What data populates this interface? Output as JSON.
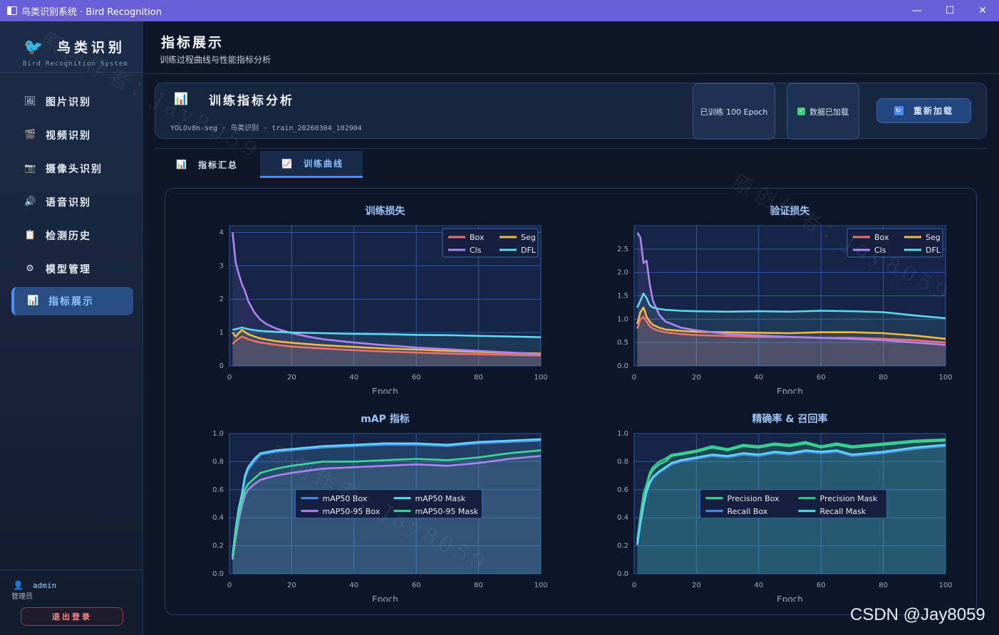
{
  "window": {
    "title": "鸟类识别系统 · Bird Recognition",
    "minimize": "—",
    "maximize": "☐",
    "close": "✕"
  },
  "sidebar": {
    "logo_title": "鸟类识别",
    "logo_sub": "Bird Recognition System",
    "items": [
      {
        "label": "图片识别",
        "icon": "image-icon",
        "glyph": "🖼"
      },
      {
        "label": "视频识别",
        "icon": "clapper-icon",
        "glyph": "🎬"
      },
      {
        "label": "摄像头识别",
        "icon": "camera-icon",
        "glyph": "📷"
      },
      {
        "label": "语音识别",
        "icon": "speaker-icon",
        "glyph": "🔊"
      },
      {
        "label": "检测历史",
        "icon": "clipboard-icon",
        "glyph": "📋"
      },
      {
        "label": "模型管理",
        "icon": "gear-icon",
        "glyph": "⚙"
      },
      {
        "label": "指标展示",
        "icon": "bar-chart-icon",
        "glyph": "📊"
      }
    ],
    "active_index": 6,
    "user": {
      "name": "admin",
      "role": "管理员"
    },
    "logout": "退出登录"
  },
  "header": {
    "title": "指标展示",
    "subtitle": "训练过程曲线与性能指标分析"
  },
  "card": {
    "title": "训练指标分析",
    "meta": "YOLOv8n-seg  ·  鸟类识别  ·  train_20260304_102904",
    "badge_epochs": "已训练 100 Epoch",
    "badge_loaded": "数据已加载",
    "reload": "重新加载"
  },
  "tabs": [
    {
      "label": "指标汇总"
    },
    {
      "label": "训练曲线"
    }
  ],
  "watermark": "原创作者：Jay8059",
  "footer_watermark": "CSDN @Jay8059",
  "colors": {
    "box": "#ef6f6c",
    "seg": "#f4b942",
    "cls": "#b083f5",
    "dfl": "#5fd8ee",
    "accent": "#4a8cf7"
  },
  "chart_data": [
    {
      "type": "line",
      "title": "训练损失",
      "xlabel": "Epoch",
      "ylabel": "",
      "xlim": [
        0,
        100
      ],
      "ylim": [
        0,
        4.2
      ],
      "xticks": [
        0,
        20,
        40,
        60,
        80,
        100
      ],
      "yticks": [
        0,
        1,
        2,
        3,
        4
      ],
      "grid": true,
      "legend": "top-right",
      "series": [
        {
          "name": "Box",
          "color": "#ef6f6c",
          "x": [
            1,
            2,
            4,
            6,
            8,
            10,
            15,
            20,
            30,
            40,
            50,
            60,
            70,
            80,
            90,
            100
          ],
          "y": [
            0.65,
            0.75,
            0.88,
            0.8,
            0.74,
            0.7,
            0.63,
            0.58,
            0.52,
            0.47,
            0.43,
            0.4,
            0.37,
            0.35,
            0.33,
            0.31
          ]
        },
        {
          "name": "Seg",
          "color": "#f4b942",
          "x": [
            1,
            2,
            4,
            6,
            8,
            10,
            15,
            20,
            30,
            40,
            50,
            60,
            70,
            80,
            90,
            100
          ],
          "y": [
            1.0,
            0.88,
            1.08,
            0.95,
            0.88,
            0.82,
            0.74,
            0.69,
            0.62,
            0.57,
            0.52,
            0.49,
            0.45,
            0.42,
            0.39,
            0.37
          ]
        },
        {
          "name": "Cls",
          "color": "#b083f5",
          "x": [
            1,
            2,
            3,
            4,
            5,
            6,
            8,
            10,
            12,
            15,
            20,
            25,
            30,
            40,
            50,
            60,
            70,
            80,
            90,
            100
          ],
          "y": [
            4.0,
            3.1,
            2.75,
            2.45,
            2.25,
            1.95,
            1.6,
            1.38,
            1.25,
            1.12,
            0.98,
            0.88,
            0.8,
            0.7,
            0.62,
            0.55,
            0.5,
            0.45,
            0.4,
            0.35
          ]
        },
        {
          "name": "DFL",
          "color": "#5fd8ee",
          "x": [
            1,
            2,
            4,
            6,
            8,
            10,
            15,
            20,
            30,
            40,
            50,
            60,
            70,
            80,
            90,
            100
          ],
          "y": [
            1.08,
            1.1,
            1.15,
            1.1,
            1.07,
            1.05,
            1.02,
            1.0,
            0.98,
            0.96,
            0.95,
            0.93,
            0.92,
            0.9,
            0.88,
            0.86
          ]
        }
      ]
    },
    {
      "type": "line",
      "title": "验证损失",
      "xlabel": "Epoch",
      "ylabel": "",
      "xlim": [
        0,
        100
      ],
      "ylim": [
        0,
        3.0
      ],
      "xticks": [
        0,
        20,
        40,
        60,
        80,
        100
      ],
      "yticks": [
        0,
        0.5,
        1.0,
        1.5,
        2.0,
        2.5
      ],
      "grid": true,
      "legend": "top-right",
      "series": [
        {
          "name": "Box",
          "color": "#ef6f6c",
          "x": [
            1,
            2,
            3,
            4,
            5,
            6,
            8,
            10,
            15,
            20,
            30,
            40,
            50,
            60,
            70,
            80,
            90,
            100
          ],
          "y": [
            0.8,
            1.0,
            1.05,
            0.95,
            0.85,
            0.8,
            0.75,
            0.72,
            0.68,
            0.66,
            0.64,
            0.62,
            0.62,
            0.6,
            0.6,
            0.58,
            0.55,
            0.5
          ]
        },
        {
          "name": "Seg",
          "color": "#f4b942",
          "x": [
            1,
            2,
            3,
            4,
            5,
            6,
            8,
            10,
            15,
            20,
            30,
            40,
            50,
            60,
            70,
            80,
            90,
            100
          ],
          "y": [
            0.9,
            1.15,
            1.25,
            1.05,
            0.95,
            0.88,
            0.82,
            0.78,
            0.75,
            0.73,
            0.72,
            0.71,
            0.7,
            0.72,
            0.72,
            0.7,
            0.65,
            0.58
          ]
        },
        {
          "name": "Cls",
          "color": "#b083f5",
          "x": [
            1,
            2,
            3,
            4,
            5,
            6,
            8,
            10,
            12,
            15,
            20,
            25,
            30,
            40,
            50,
            60,
            70,
            80,
            90,
            100
          ],
          "y": [
            2.85,
            2.75,
            2.2,
            2.25,
            1.75,
            1.4,
            1.1,
            0.95,
            0.9,
            0.82,
            0.76,
            0.72,
            0.68,
            0.65,
            0.62,
            0.6,
            0.58,
            0.55,
            0.5,
            0.45
          ]
        },
        {
          "name": "DFL",
          "color": "#5fd8ee",
          "x": [
            1,
            2,
            3,
            4,
            5,
            6,
            8,
            10,
            15,
            20,
            30,
            40,
            50,
            60,
            70,
            80,
            90,
            100
          ],
          "y": [
            1.25,
            1.4,
            1.55,
            1.45,
            1.3,
            1.25,
            1.22,
            1.2,
            1.18,
            1.17,
            1.16,
            1.17,
            1.16,
            1.18,
            1.17,
            1.15,
            1.08,
            1.02
          ]
        }
      ]
    },
    {
      "type": "line",
      "title": "mAP 指标",
      "xlabel": "Epoch",
      "ylabel": "",
      "xlim": [
        0,
        100
      ],
      "ylim": [
        0,
        1.0
      ],
      "xticks": [
        0,
        20,
        40,
        60,
        80,
        100
      ],
      "yticks": [
        0,
        0.2,
        0.4,
        0.6,
        0.8,
        1.0
      ],
      "grid": true,
      "legend": "center",
      "series": [
        {
          "name": "mAP50 Box",
          "color": "#4c8cf0",
          "x": [
            1,
            2,
            3,
            4,
            5,
            6,
            8,
            10,
            15,
            20,
            30,
            40,
            50,
            60,
            70,
            80,
            90,
            100
          ],
          "y": [
            0.12,
            0.3,
            0.45,
            0.55,
            0.68,
            0.74,
            0.8,
            0.85,
            0.87,
            0.88,
            0.9,
            0.91,
            0.92,
            0.92,
            0.91,
            0.93,
            0.94,
            0.95
          ]
        },
        {
          "name": "mAP50 Mask",
          "color": "#5fd8ee",
          "x": [
            1,
            2,
            3,
            4,
            5,
            6,
            8,
            10,
            15,
            20,
            30,
            40,
            50,
            60,
            70,
            80,
            90,
            100
          ],
          "y": [
            0.13,
            0.32,
            0.47,
            0.57,
            0.7,
            0.76,
            0.82,
            0.86,
            0.88,
            0.89,
            0.91,
            0.92,
            0.93,
            0.93,
            0.92,
            0.94,
            0.95,
            0.96
          ]
        },
        {
          "name": "mAP50-95 Box",
          "color": "#b083f5",
          "x": [
            1,
            2,
            3,
            4,
            5,
            6,
            8,
            10,
            15,
            20,
            30,
            40,
            50,
            60,
            70,
            80,
            90,
            100
          ],
          "y": [
            0.1,
            0.25,
            0.38,
            0.48,
            0.56,
            0.6,
            0.64,
            0.67,
            0.7,
            0.72,
            0.75,
            0.76,
            0.77,
            0.78,
            0.77,
            0.79,
            0.82,
            0.84
          ]
        },
        {
          "name": "mAP50-95 Mask",
          "color": "#3ed69a",
          "x": [
            1,
            2,
            3,
            4,
            5,
            6,
            8,
            10,
            15,
            20,
            30,
            40,
            50,
            60,
            70,
            80,
            90,
            100
          ],
          "y": [
            0.11,
            0.28,
            0.42,
            0.52,
            0.6,
            0.64,
            0.68,
            0.72,
            0.75,
            0.77,
            0.8,
            0.8,
            0.81,
            0.82,
            0.81,
            0.83,
            0.86,
            0.88
          ]
        }
      ]
    },
    {
      "type": "line",
      "title": "精确率 & 召回率",
      "xlabel": "Epoch",
      "ylabel": "",
      "xlim": [
        0,
        100
      ],
      "ylim": [
        0,
        1.0
      ],
      "xticks": [
        0,
        20,
        40,
        60,
        80,
        100
      ],
      "yticks": [
        0,
        0.2,
        0.4,
        0.6,
        0.8,
        1.0
      ],
      "grid": true,
      "legend": "center",
      "series": [
        {
          "name": "Precision Box",
          "color": "#3ed69a",
          "x": [
            1,
            2,
            3,
            4,
            5,
            6,
            8,
            10,
            12,
            15,
            20,
            25,
            30,
            35,
            40,
            45,
            50,
            55,
            60,
            65,
            70,
            80,
            90,
            100
          ],
          "y": [
            0.22,
            0.4,
            0.55,
            0.62,
            0.7,
            0.74,
            0.78,
            0.8,
            0.84,
            0.85,
            0.87,
            0.9,
            0.88,
            0.91,
            0.9,
            0.92,
            0.91,
            0.93,
            0.9,
            0.92,
            0.9,
            0.92,
            0.94,
            0.95
          ]
        },
        {
          "name": "Precision Mask",
          "color": "#35c98c",
          "x": [
            1,
            2,
            3,
            4,
            5,
            6,
            8,
            10,
            12,
            15,
            20,
            25,
            30,
            35,
            40,
            45,
            50,
            55,
            60,
            65,
            70,
            80,
            90,
            100
          ],
          "y": [
            0.24,
            0.42,
            0.57,
            0.64,
            0.72,
            0.76,
            0.8,
            0.82,
            0.85,
            0.86,
            0.88,
            0.91,
            0.89,
            0.92,
            0.91,
            0.93,
            0.92,
            0.94,
            0.91,
            0.93,
            0.91,
            0.93,
            0.95,
            0.96
          ]
        },
        {
          "name": "Recall Box",
          "color": "#4c8cf0",
          "x": [
            1,
            2,
            3,
            4,
            5,
            6,
            8,
            10,
            12,
            15,
            20,
            25,
            30,
            35,
            40,
            45,
            50,
            55,
            60,
            65,
            70,
            80,
            90,
            100
          ],
          "y": [
            0.2,
            0.35,
            0.48,
            0.58,
            0.64,
            0.68,
            0.72,
            0.75,
            0.78,
            0.8,
            0.82,
            0.84,
            0.83,
            0.85,
            0.84,
            0.86,
            0.85,
            0.87,
            0.86,
            0.87,
            0.84,
            0.86,
            0.89,
            0.91
          ]
        },
        {
          "name": "Recall Mask",
          "color": "#5fd8ee",
          "x": [
            1,
            2,
            3,
            4,
            5,
            6,
            8,
            10,
            12,
            15,
            20,
            25,
            30,
            35,
            40,
            45,
            50,
            55,
            60,
            65,
            70,
            80,
            90,
            100
          ],
          "y": [
            0.21,
            0.36,
            0.49,
            0.59,
            0.65,
            0.69,
            0.73,
            0.76,
            0.79,
            0.81,
            0.83,
            0.85,
            0.84,
            0.86,
            0.85,
            0.87,
            0.86,
            0.88,
            0.87,
            0.88,
            0.85,
            0.87,
            0.9,
            0.92
          ]
        }
      ]
    }
  ]
}
